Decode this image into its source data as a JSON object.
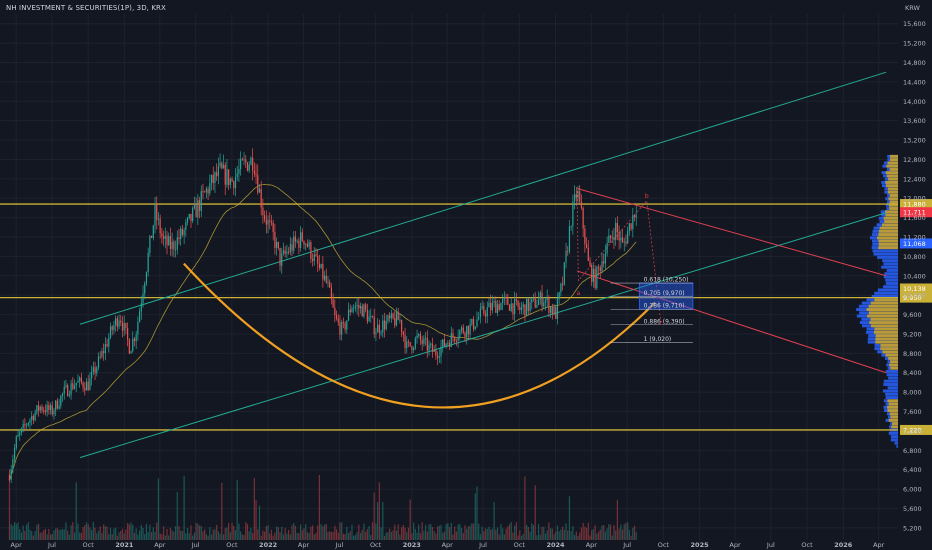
{
  "header": {
    "title": "NH INVESTMENT & SECURITIES(1P), 3D, KRX",
    "currency": "KRW"
  },
  "colors": {
    "background": "#131722",
    "grid": "#1e222d",
    "up": "#26a69a",
    "down": "#ef5350",
    "channel": "#22ab94",
    "hline": "#c9b037",
    "cup": "#f0a020",
    "downtrend": "#e04050",
    "fib": "#d1d4dc",
    "box": "#2962ff",
    "profile": "#2962ff",
    "profile_hi": "#c9a227",
    "ma": "#c9b037"
  },
  "chart_data": {
    "type": "candlestick",
    "title": "NH INVESTMENT & SECURITIES(1P), 3D, KRX",
    "y_unit": "KRW",
    "ylim": [
      4950,
      15800
    ],
    "y_ticks": [
      15600,
      15200,
      14800,
      14400,
      14000,
      13600,
      13200,
      12800,
      12400,
      12000,
      11600,
      11200,
      10800,
      10400,
      10000,
      9600,
      9200,
      8800,
      8400,
      8000,
      7600,
      7200,
      6800,
      6400,
      6000,
      5600,
      5200
    ],
    "x_ticks": [
      "Apr",
      "Jul",
      "Oct",
      "2021",
      "Apr",
      "Jul",
      "Oct",
      "2022",
      "Apr",
      "Jul",
      "Oct",
      "2023",
      "Apr",
      "Jul",
      "Oct",
      "2024",
      "Apr",
      "Jul",
      "Oct",
      "2025",
      "Apr",
      "Jul",
      "Oct",
      "2026",
      "Apr"
    ],
    "x_range": [
      "2020-03",
      "2026-05"
    ],
    "price_path": [
      [
        "2020-03-15",
        6300
      ],
      [
        "2020-04-01",
        7000
      ],
      [
        "2020-05-01",
        7400
      ],
      [
        "2020-06-01",
        7700
      ],
      [
        "2020-07-01",
        7600
      ],
      [
        "2020-08-01",
        8000
      ],
      [
        "2020-09-01",
        8200
      ],
      [
        "2020-10-01",
        8150
      ],
      [
        "2020-11-01",
        8700
      ],
      [
        "2020-12-01",
        9300
      ],
      [
        "2020-12-20",
        9600
      ],
      [
        "2021-01-15",
        8900
      ],
      [
        "2021-02-01",
        9300
      ],
      [
        "2021-02-20",
        10300
      ],
      [
        "2021-03-10",
        11200
      ],
      [
        "2021-03-20",
        11700
      ],
      [
        "2021-04-10",
        11100
      ],
      [
        "2021-05-01",
        11000
      ],
      [
        "2021-06-01",
        11300
      ],
      [
        "2021-07-01",
        11750
      ],
      [
        "2021-08-01",
        12200
      ],
      [
        "2021-09-01",
        12550
      ],
      [
        "2021-10-01",
        12350
      ],
      [
        "2021-11-01",
        12700
      ],
      [
        "2021-11-25",
        12800
      ],
      [
        "2021-12-20",
        11700
      ],
      [
        "2022-01-15",
        11200
      ],
      [
        "2022-02-01",
        10700
      ],
      [
        "2022-03-01",
        11000
      ],
      [
        "2022-04-01",
        11200
      ],
      [
        "2022-05-01",
        10700
      ],
      [
        "2022-06-01",
        10200
      ],
      [
        "2022-06-20",
        9500
      ],
      [
        "2022-07-10",
        9250
      ],
      [
        "2022-08-01",
        9800
      ],
      [
        "2022-09-01",
        9700
      ],
      [
        "2022-10-01",
        9300
      ],
      [
        "2022-11-01",
        9450
      ],
      [
        "2022-12-01",
        9500
      ],
      [
        "2022-12-20",
        8900
      ],
      [
        "2023-01-15",
        9100
      ],
      [
        "2023-02-01",
        9000
      ],
      [
        "2023-03-01",
        8800
      ],
      [
        "2023-04-01",
        9050
      ],
      [
        "2023-05-01",
        9250
      ],
      [
        "2023-06-01",
        9350
      ],
      [
        "2023-07-01",
        9650
      ],
      [
        "2023-08-01",
        9800
      ],
      [
        "2023-09-01",
        9850
      ],
      [
        "2023-10-01",
        9700
      ],
      [
        "2023-11-01",
        9800
      ],
      [
        "2023-12-01",
        9950
      ],
      [
        "2024-01-01",
        9600
      ],
      [
        "2024-01-20",
        10300
      ],
      [
        "2024-02-10",
        11600
      ],
      [
        "2024-02-25",
        12150
      ],
      [
        "2024-03-10",
        11500
      ],
      [
        "2024-03-25",
        10600
      ],
      [
        "2024-04-10",
        10300
      ],
      [
        "2024-05-01",
        10800
      ],
      [
        "2024-06-01",
        11400
      ],
      [
        "2024-06-20",
        11000
      ],
      [
        "2024-07-10",
        11500
      ],
      [
        "2024-07-25",
        11850
      ]
    ],
    "levels": {
      "resistance": 11880,
      "support_mid": 9950,
      "support_low": 7220
    },
    "price_tags": [
      {
        "label": "11,880",
        "value": 11880,
        "color": "#c9b037"
      },
      {
        "label": "11,711",
        "value": 11711,
        "color": "#f23645"
      },
      {
        "label": "11,068",
        "value": 11068,
        "color": "#2962ff"
      },
      {
        "label": "10,138",
        "value": 10138,
        "color": "#c9b037"
      },
      {
        "label": "9,950",
        "value": 9950,
        "color": "#c9b037"
      },
      {
        "label": "7,220",
        "value": 7220,
        "color": "#c9b037"
      }
    ],
    "fib_levels": [
      {
        "label": "0.618 (10,250)",
        "value": 10250
      },
      {
        "label": "0.705 (9,970)",
        "value": 9970
      },
      {
        "label": "0.786 (9,710)",
        "value": 9710
      },
      {
        "label": "0.886 (9,390)",
        "value": 9390
      },
      {
        "label": "1 (9,020)",
        "value": 9020
      }
    ],
    "wave_labels": [
      {
        "label": "a",
        "date": "2024-02-28",
        "value": 10000
      },
      {
        "label": "b",
        "date": "2024-08-20",
        "value": 12000
      },
      {
        "label": "c",
        "date": "2024-09-25",
        "value": 9380
      }
    ],
    "target_zone": {
      "date_start": "2024-08-01",
      "date_end": "2024-12-15",
      "value_top": 10250,
      "value_bottom": 9710
    },
    "grid": true
  }
}
